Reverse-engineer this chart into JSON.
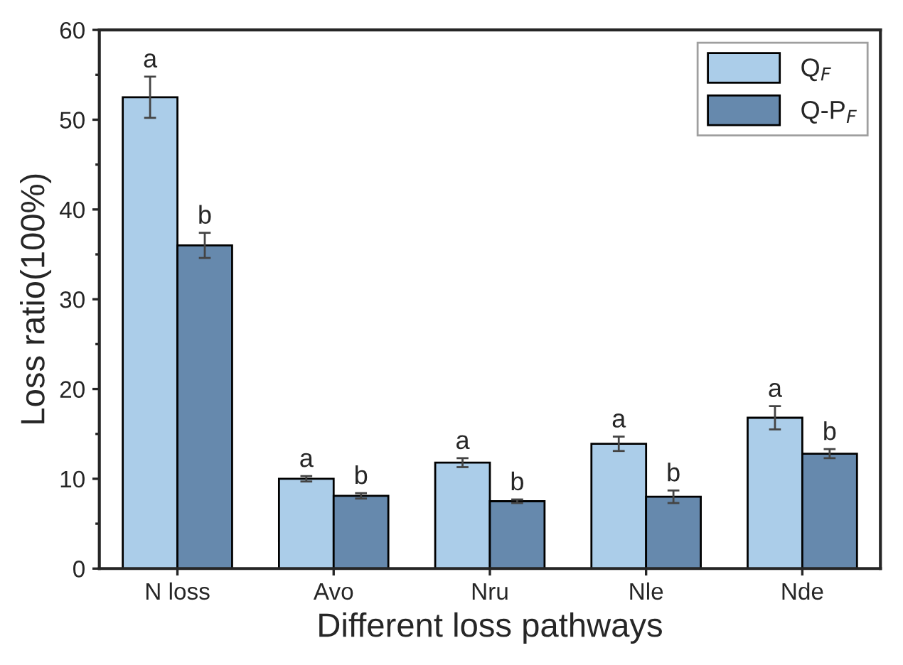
{
  "chart_data": {
    "type": "bar",
    "xlabel": "Different loss pathways",
    "ylabel": "Loss ratio(100%)",
    "categories": [
      "N loss",
      "Avo",
      "Nru",
      "Nle",
      "Nde"
    ],
    "series": [
      {
        "name": "Q$_{F}$",
        "color": "#abcde9",
        "values": [
          52.5,
          10.0,
          11.8,
          13.9,
          16.8
        ],
        "errors": [
          2.3,
          0.3,
          0.5,
          0.8,
          1.3
        ],
        "value_labels": [
          "a",
          "a",
          "a",
          "a",
          "a"
        ]
      },
      {
        "name": "Q-P$_{F}$",
        "color": "#6689ad",
        "values": [
          36.0,
          8.1,
          7.5,
          8.0,
          12.8
        ],
        "errors": [
          1.4,
          0.3,
          0.2,
          0.7,
          0.5
        ],
        "value_labels": [
          "b",
          "b",
          "b",
          "b",
          "b"
        ]
      }
    ],
    "ylim": [
      0,
      60
    ],
    "yticks": [
      0,
      10,
      20,
      30,
      40,
      50,
      60
    ],
    "legend": "top right",
    "grid": false
  }
}
